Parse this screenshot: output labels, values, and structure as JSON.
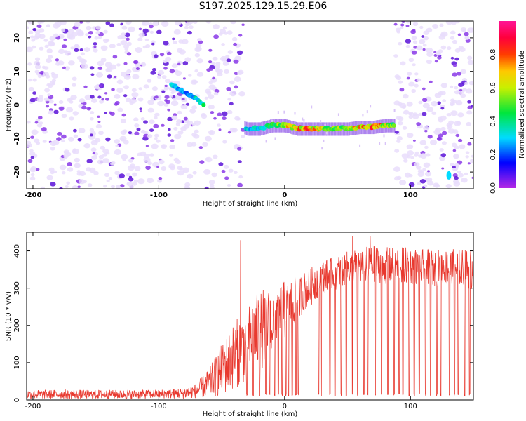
{
  "title": "S197.2025.129.15.29.E06",
  "chart_data": [
    {
      "type": "heatmap",
      "xlabel": "Height of straight line (km)",
      "ylabel": "Frequency (Hz)",
      "xlim": [
        -205,
        150
      ],
      "ylim": [
        -25,
        25
      ],
      "x_ticks": [
        -200,
        -100,
        0,
        100
      ],
      "y_ticks": [
        -20,
        -10,
        0,
        10,
        20
      ],
      "colorbar": {
        "label": "Normalized spectral amplitude",
        "range": [
          0.0,
          1.0
        ],
        "ticks": [
          0.0,
          0.2,
          0.4,
          0.6,
          0.8
        ],
        "colormap": "rainbow (magenta-blue-cyan-green-yellow-red-pink)"
      },
      "signal_track": {
        "description": "high-amplitude ridge",
        "x": [
          -90,
          -85,
          -80,
          -75,
          -70,
          -65,
          -30,
          -20,
          -10,
          0,
          10,
          20,
          30,
          40,
          50,
          60,
          70,
          80,
          87
        ],
        "frequency_hz": [
          6,
          5,
          4,
          3,
          2,
          0,
          -7,
          -7,
          -6,
          -6,
          -7,
          -7,
          -7,
          -7,
          -7,
          -6.5,
          -6.5,
          -6,
          -6
        ],
        "amplitude": [
          0.3,
          0.3,
          0.25,
          0.3,
          0.35,
          0.4,
          0.3,
          0.35,
          0.45,
          0.65,
          0.7,
          0.75,
          0.6,
          0.55,
          0.6,
          0.7,
          0.8,
          0.65,
          0.5
        ]
      },
      "blank_regions_km": [
        [
          -33,
          88
        ],
        [
          117,
          118
        ],
        [
          127,
          130
        ]
      ],
      "noise_level": 0.12,
      "colors": {
        "low": "#e9ddfb",
        "mid": "#8a3ae8",
        "high": "#5a12d8"
      }
    },
    {
      "type": "line",
      "xlabel": "Height of straight line (km)",
      "ylabel": "SNR (10 * v/v)",
      "xlim": [
        -205,
        150
      ],
      "ylim": [
        0,
        450
      ],
      "x_ticks": [
        -200,
        -100,
        0,
        100
      ],
      "y_ticks": [
        0,
        100,
        200,
        300,
        400
      ],
      "line_color": "#e8392f",
      "series": [
        {
          "x": [
            -205,
            -180,
            -150,
            -120,
            -100,
            -80,
            -70,
            -60,
            -50,
            -40,
            -30,
            -20,
            -15,
            -10,
            -5,
            0,
            5,
            10,
            15,
            20,
            25,
            30,
            40,
            50,
            60,
            70,
            80,
            90,
            100,
            110,
            120,
            130,
            140,
            148
          ],
          "mean": [
            15,
            15,
            15,
            15,
            16,
            18,
            25,
            45,
            80,
            120,
            150,
            185,
            200,
            210,
            230,
            240,
            260,
            270,
            290,
            300,
            320,
            330,
            340,
            355,
            360,
            365,
            360,
            360,
            360,
            355,
            355,
            355,
            355,
            350
          ],
          "amp": [
            12,
            12,
            12,
            12,
            12,
            15,
            20,
            40,
            70,
            90,
            100,
            110,
            100,
            90,
            80,
            80,
            70,
            60,
            55,
            50,
            50,
            45,
            45,
            45,
            50,
            50,
            50,
            50,
            50,
            50,
            50,
            50,
            50,
            55
          ]
        }
      ],
      "spikes": [
        [
          -35,
          429
        ],
        [
          54,
          440
        ],
        [
          68,
          440
        ]
      ],
      "dropouts_x": [
        -30,
        -25,
        -20,
        -15,
        -12,
        -8,
        -5,
        -2,
        1,
        3,
        6,
        9,
        11,
        27,
        29,
        36,
        40,
        45,
        49,
        54,
        58,
        63,
        66,
        72,
        77,
        82,
        87,
        91,
        94,
        99,
        103,
        107,
        112,
        116,
        121,
        124,
        131,
        135,
        138,
        143,
        147
      ],
      "dropout_level": 10
    }
  ]
}
